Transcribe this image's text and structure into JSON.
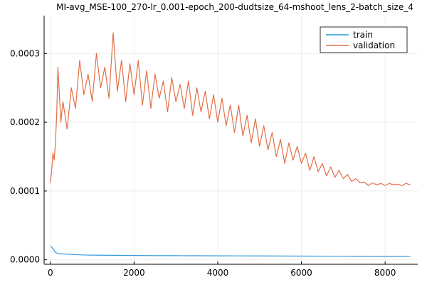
{
  "chart_data": {
    "type": "line",
    "title": "MI-avg_MSE-100_270-lr_0.001-epoch_200-dudtsize_64-mshoot_lens_2-batch_size_4",
    "xlabel": "",
    "ylabel": "",
    "xlim": [
      -150,
      8780
    ],
    "ylim": [
      -6.5e-06,
      0.000355
    ],
    "xticks": [
      0,
      2000,
      4000,
      6000,
      8000
    ],
    "xtick_labels": [
      "0",
      "2000",
      "4000",
      "6000",
      "8000"
    ],
    "yticks": [
      0,
      0.0001,
      0.0002,
      0.0003
    ],
    "ytick_labels": [
      "0.0000",
      "0.0001",
      "0.0002",
      "0.0003"
    ],
    "grid": true,
    "legend_position": "top-right",
    "series": [
      {
        "name": "train",
        "color": "#2f97dd",
        "x": [
          0,
          20,
          50,
          80,
          100,
          130,
          160,
          200,
          300,
          400,
          600,
          800,
          1000,
          1500,
          2000,
          2500,
          3000,
          3500,
          4000,
          4500,
          5000,
          5500,
          6000,
          6500,
          7000,
          7500,
          8000,
          8300,
          8600
        ],
        "y": [
          2e-05,
          1.9e-05,
          1.7e-05,
          1.5e-05,
          1.2e-05,
          1.05e-05,
          9.5e-06,
          9e-06,
          8.5e-06,
          8e-06,
          7.5e-06,
          7e-06,
          6.8e-06,
          6.5e-06,
          6.3e-06,
          6.1e-06,
          6e-06,
          5.9e-06,
          5.8e-06,
          5.7e-06,
          5.6e-06,
          5.5e-06,
          5.4e-06,
          5.3e-06,
          5.2e-06,
          5.1e-06,
          5e-06,
          5e-06,
          4.9e-06
        ]
      },
      {
        "name": "validation",
        "color": "#e26f46",
        "x": [
          0,
          30,
          60,
          90,
          120,
          150,
          180,
          250,
          300,
          400,
          500,
          600,
          700,
          800,
          900,
          1000,
          1100,
          1200,
          1300,
          1400,
          1500,
          1600,
          1700,
          1800,
          1900,
          2000,
          2100,
          2200,
          2300,
          2400,
          2500,
          2600,
          2700,
          2800,
          2900,
          3000,
          3100,
          3200,
          3300,
          3400,
          3500,
          3600,
          3700,
          3800,
          3900,
          4000,
          4100,
          4200,
          4300,
          4400,
          4500,
          4600,
          4700,
          4800,
          4900,
          5000,
          5100,
          5200,
          5300,
          5400,
          5500,
          5600,
          5700,
          5800,
          5900,
          6000,
          6100,
          6200,
          6300,
          6400,
          6500,
          6600,
          6700,
          6800,
          6900,
          7000,
          7100,
          7200,
          7300,
          7400,
          7500,
          7600,
          7700,
          7800,
          7900,
          8000,
          8100,
          8200,
          8300,
          8400,
          8500,
          8600
        ],
        "y": [
          0.000112,
          0.00013,
          0.000155,
          0.000145,
          0.00017,
          0.00021,
          0.00028,
          0.0002,
          0.00023,
          0.00019,
          0.00025,
          0.00022,
          0.00029,
          0.00024,
          0.00027,
          0.00023,
          0.0003,
          0.00025,
          0.00028,
          0.000235,
          0.00033,
          0.000245,
          0.00029,
          0.00023,
          0.000285,
          0.00024,
          0.00029,
          0.000225,
          0.000275,
          0.00022,
          0.00027,
          0.000235,
          0.00026,
          0.000215,
          0.000265,
          0.00023,
          0.000255,
          0.00022,
          0.00026,
          0.00021,
          0.00025,
          0.000215,
          0.000245,
          0.000205,
          0.00024,
          0.0002,
          0.000235,
          0.000195,
          0.000225,
          0.000185,
          0.000225,
          0.00018,
          0.00021,
          0.00017,
          0.000205,
          0.000165,
          0.000195,
          0.00016,
          0.000185,
          0.00015,
          0.000175,
          0.00014,
          0.00017,
          0.000145,
          0.000165,
          0.00014,
          0.000155,
          0.00013,
          0.00015,
          0.000128,
          0.00014,
          0.000122,
          0.000135,
          0.00012,
          0.00013,
          0.000118,
          0.000124,
          0.000114,
          0.000118,
          0.000112,
          0.000113,
          0.000108,
          0.000112,
          0.000109,
          0.000111,
          0.000108,
          0.000111,
          0.000109,
          0.00011,
          0.000108,
          0.000111,
          0.000109
        ]
      }
    ]
  }
}
